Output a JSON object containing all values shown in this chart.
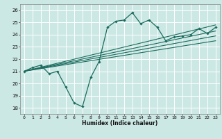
{
  "title": "",
  "xlabel": "Humidex (Indice chaleur)",
  "ylabel": "",
  "bg_color": "#cce8e4",
  "grid_color": "#ffffff",
  "line_color": "#1a6b5e",
  "xlim": [
    -0.5,
    23.5
  ],
  "ylim": [
    17.5,
    26.5
  ],
  "xticks": [
    0,
    1,
    2,
    3,
    4,
    5,
    6,
    7,
    8,
    9,
    10,
    11,
    12,
    13,
    14,
    15,
    16,
    17,
    18,
    19,
    20,
    21,
    22,
    23
  ],
  "yticks": [
    18,
    19,
    20,
    21,
    22,
    23,
    24,
    25,
    26
  ],
  "main_line_x": [
    0,
    1,
    2,
    3,
    4,
    5,
    6,
    7,
    8,
    9,
    10,
    11,
    12,
    13,
    14,
    15,
    16,
    17,
    18,
    19,
    20,
    21,
    22,
    23
  ],
  "main_line_y": [
    21.0,
    21.3,
    21.5,
    20.8,
    21.0,
    19.7,
    18.4,
    18.1,
    20.5,
    21.8,
    24.6,
    25.1,
    25.2,
    25.8,
    24.9,
    25.2,
    24.6,
    23.5,
    23.8,
    23.9,
    24.0,
    24.5,
    24.1,
    24.6
  ],
  "trend_line1_x": [
    0,
    23
  ],
  "trend_line1_y": [
    21.0,
    23.5
  ],
  "trend_line2_x": [
    0,
    23
  ],
  "trend_line2_y": [
    21.0,
    23.9
  ],
  "trend_line3_x": [
    0,
    23
  ],
  "trend_line3_y": [
    21.0,
    24.3
  ],
  "trend_line4_x": [
    0,
    23
  ],
  "trend_line4_y": [
    21.0,
    24.8
  ]
}
